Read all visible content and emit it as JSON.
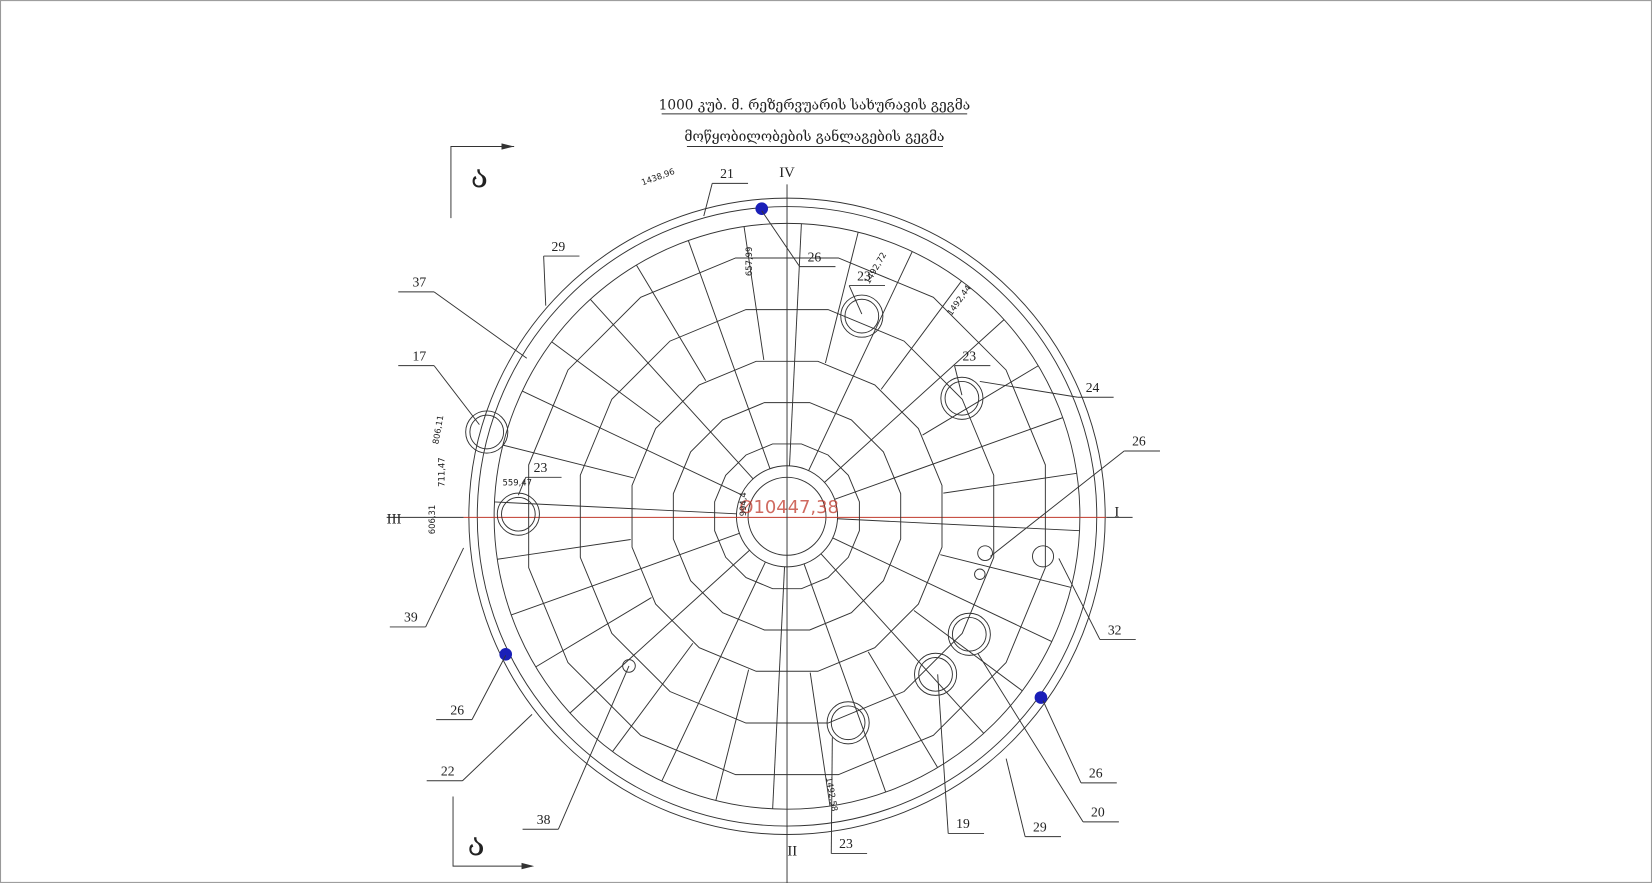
{
  "header": {
    "title_line_1": "1000 კუბ. მ. რეზერვუარის სახურავის გეგმა",
    "title_line_2": "მოწყობილობების განლაგების გეგმა"
  },
  "section_marks": [
    "ა",
    "ა"
  ],
  "axis_labels": [
    "IV",
    "I",
    "II",
    "III"
  ],
  "diameter_label": "Ø10447,38",
  "dimensions": [
    "1438,96",
    "657,99",
    "1492,72",
    "1492,44",
    "806,11",
    "711,47",
    "606,31",
    "559,47",
    "994,4",
    "1492,58"
  ],
  "callouts": [
    "21",
    "26",
    "29",
    "37",
    "17",
    "23",
    "39",
    "26",
    "22",
    "38",
    "23",
    "19",
    "29",
    "20",
    "26",
    "32",
    "26",
    "24",
    "23",
    "23"
  ]
}
